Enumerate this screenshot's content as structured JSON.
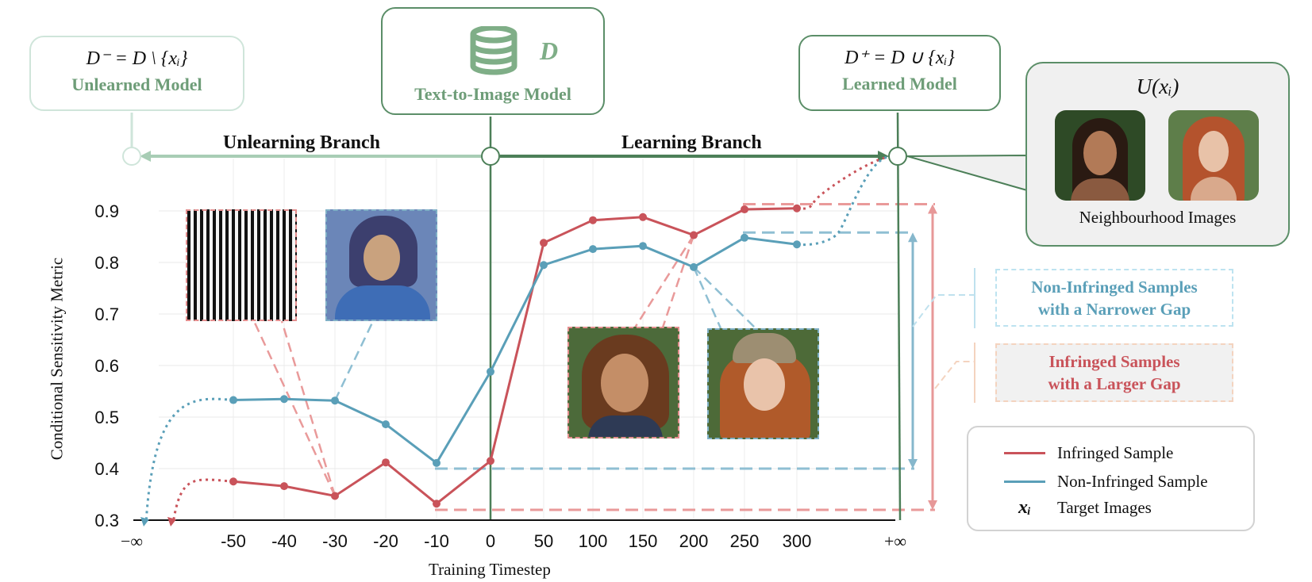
{
  "colors": {
    "infringed": "#c9535a",
    "non_infringed": "#5a9fb8",
    "dark_green": "#4c7f58",
    "light_green": "#cfe5da",
    "label_green": "#6e9d78",
    "gap_red": "#e99a9a",
    "gap_blue": "#8fbfd3"
  },
  "models": {
    "unlearned": {
      "formula": "D⁻ = D \\ {xᵢ}",
      "name": "Unlearned Model"
    },
    "base": {
      "symbol": "D",
      "name": "Text-to-Image Model",
      "icon": "database-icon"
    },
    "learned": {
      "formula": "D⁺ = D ∪ {xᵢ}",
      "name": "Learned Model"
    }
  },
  "branches": {
    "unlearning": "Unlearning Branch",
    "learning": "Learning Branch"
  },
  "neighbourhood": {
    "title": "U(xᵢ)",
    "caption": "Neighbourhood Images"
  },
  "callouts": {
    "non_infringed": [
      "Non-Infringed Samples",
      "with a Narrower Gap"
    ],
    "infringed": [
      "Infringed Samples",
      "with a Larger Gap"
    ]
  },
  "legend": {
    "infringed": "Infringed Sample",
    "non_infringed": "Non-Infringed Sample",
    "target_symbol": "xᵢ",
    "target": "Target Images"
  },
  "chart_data": {
    "type": "line",
    "xlabel": "Training Timestep",
    "ylabel": "Conditional Sensitivity Metric",
    "categories": [
      "−∞",
      "-50",
      "-40",
      "-30",
      "-20",
      "-10",
      "0",
      "50",
      "100",
      "150",
      "200",
      "250",
      "300",
      "+∞"
    ],
    "ylim": [
      0.3,
      0.9
    ],
    "yticks": [
      0.3,
      0.4,
      0.5,
      0.6,
      0.7,
      0.8,
      0.9
    ],
    "series": [
      {
        "name": "Infringed Sample",
        "x": [
          "-50",
          "-40",
          "-30",
          "-20",
          "-10",
          "0",
          "50",
          "100",
          "150",
          "200",
          "250",
          "300"
        ],
        "values": [
          0.375,
          0.366,
          0.347,
          0.412,
          0.332,
          0.415,
          0.838,
          0.882,
          0.888,
          0.853,
          0.903,
          0.905
        ]
      },
      {
        "name": "Non-Infringed Sample",
        "x": [
          "-50",
          "-40",
          "-30",
          "-20",
          "-10",
          "0",
          "50",
          "100",
          "150",
          "200",
          "250",
          "300"
        ],
        "values": [
          0.533,
          0.535,
          0.532,
          0.486,
          0.411,
          0.588,
          0.795,
          0.826,
          0.832,
          0.791,
          0.848,
          0.835
        ]
      }
    ],
    "gaps": {
      "infringed": {
        "low": 0.32,
        "high": 0.913
      },
      "non_infringed": {
        "low": 0.4,
        "high": 0.858
      }
    }
  }
}
